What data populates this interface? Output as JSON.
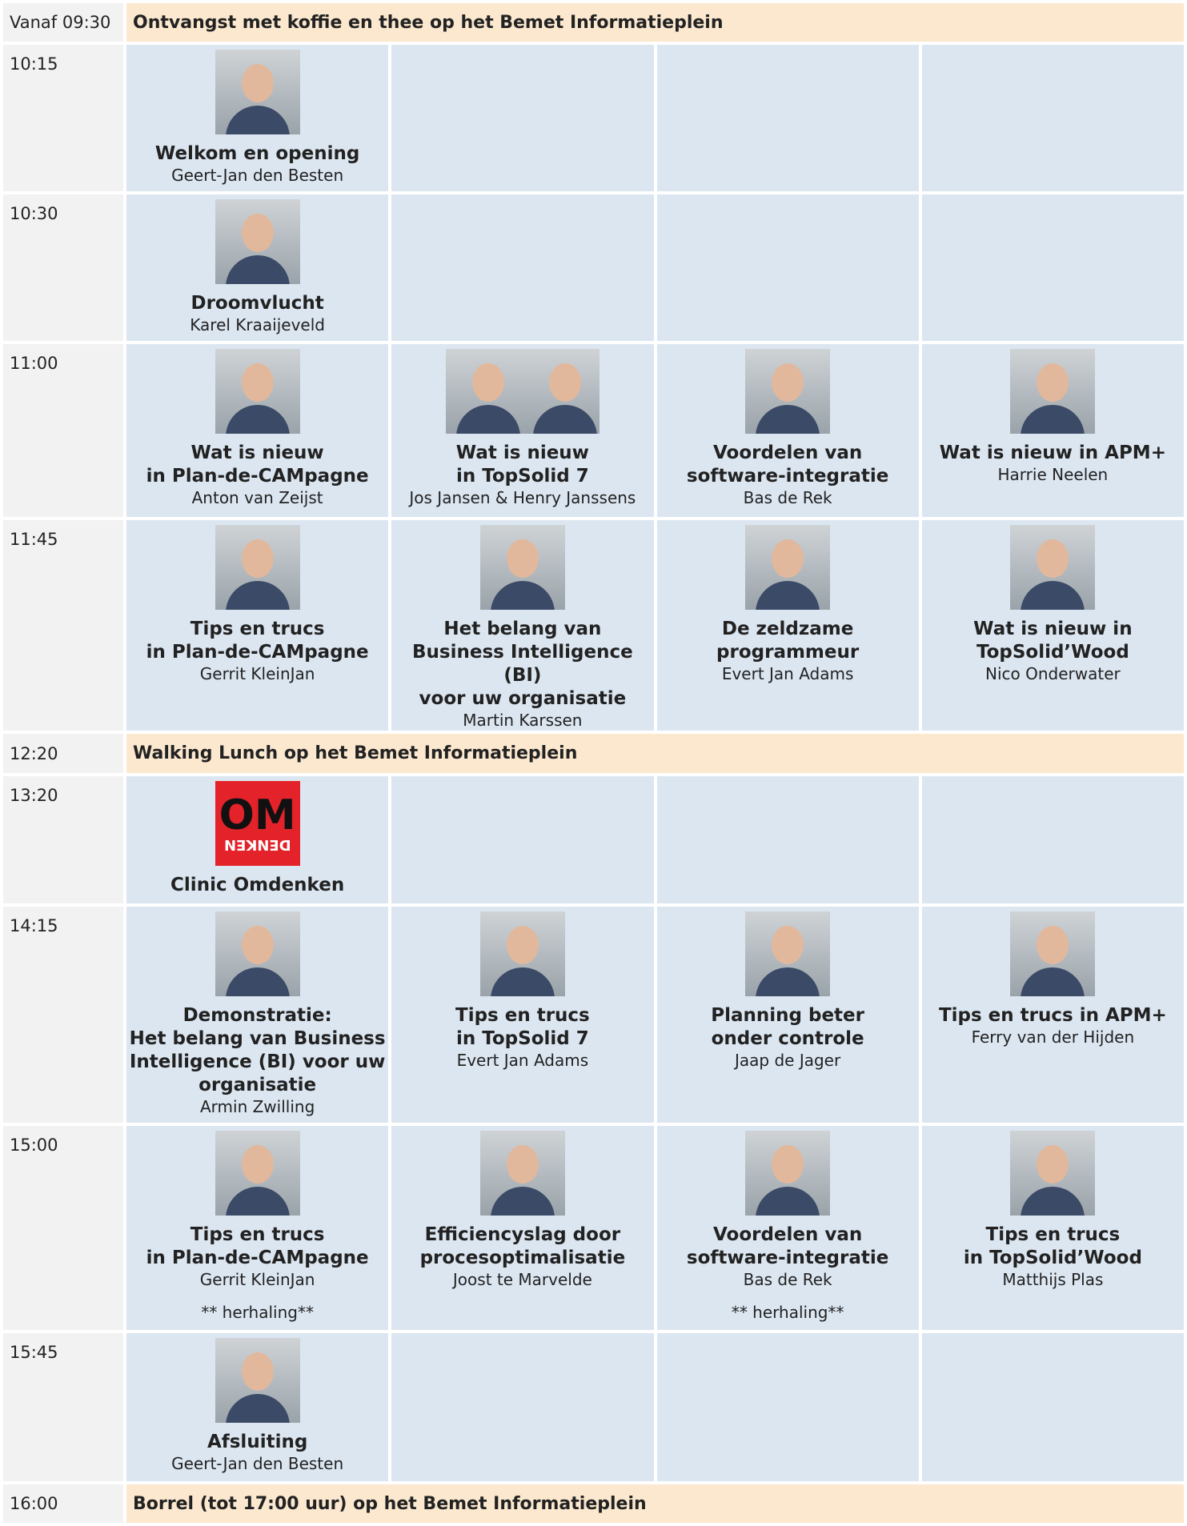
{
  "rows": [
    {
      "time": "Vanaf 09:30",
      "banner": "Ontvangst met koffie en thee op het Bemet Informatieplein"
    },
    {
      "time": "10:15",
      "sessions": [
        {
          "title_lines": [
            "Welkom en opening"
          ],
          "speaker": "Geert-Jan den Besten"
        }
      ]
    },
    {
      "time": "10:30",
      "sessions": [
        {
          "title_lines": [
            "Droomvlucht"
          ],
          "speaker": "Karel Kraaijeveld"
        }
      ]
    },
    {
      "time": "11:00",
      "sessions": [
        {
          "title_lines": [
            "Wat is nieuw",
            "in Plan-de-CAMpagne"
          ],
          "speaker": "Anton van Zeijst"
        },
        {
          "title_lines": [
            "Wat is nieuw",
            "in TopSolid 7"
          ],
          "speaker": "Jos Jansen & Henry Janssens"
        },
        {
          "title_lines": [
            "Voordelen van",
            "software-integratie"
          ],
          "speaker": "Bas de Rek"
        },
        {
          "title_lines": [
            "Wat is nieuw in APM+"
          ],
          "speaker": "Harrie Neelen"
        }
      ]
    },
    {
      "time": "11:45",
      "sessions": [
        {
          "title_lines": [
            "Tips en trucs",
            "in Plan-de-CAMpagne"
          ],
          "speaker": "Gerrit KleinJan"
        },
        {
          "title_lines": [
            "Het belang van",
            "Business Intelligence (BI)",
            "voor uw organisatie"
          ],
          "speaker": "Martin Karssen"
        },
        {
          "title_lines": [
            "De zeldzame",
            "programmeur"
          ],
          "speaker": "Evert Jan Adams"
        },
        {
          "title_lines": [
            "Wat is nieuw in",
            "TopSolid’Wood"
          ],
          "speaker": "Nico Onderwater"
        }
      ]
    },
    {
      "time": "12:20",
      "banner": "Walking Lunch op het Bemet Informatieplein"
    },
    {
      "time": "13:20",
      "sessions": [
        {
          "logo": [
            "OM",
            "DENKEN"
          ],
          "title_lines": [
            "Clinic Omdenken"
          ]
        }
      ]
    },
    {
      "time": "14:15",
      "sessions": [
        {
          "title_lines": [
            "Demonstratie:",
            "Het belang van Business",
            "Intelligence (BI) voor uw",
            "organisatie"
          ],
          "speaker": "Armin Zwilling"
        },
        {
          "title_lines": [
            "Tips en trucs",
            "in TopSolid 7"
          ],
          "speaker": "Evert Jan Adams"
        },
        {
          "title_lines": [
            "Planning beter",
            "onder controle"
          ],
          "speaker": "Jaap de Jager"
        },
        {
          "title_lines": [
            "Tips en trucs in APM+"
          ],
          "speaker": "Ferry van der Hijden"
        }
      ]
    },
    {
      "time": "15:00",
      "sessions": [
        {
          "title_lines": [
            "Tips en trucs",
            "in Plan-de-CAMpagne"
          ],
          "speaker": "Gerrit KleinJan",
          "note": "** herhaling**"
        },
        {
          "title_lines": [
            "Efficiencyslag door",
            "procesoptimalisatie"
          ],
          "speaker": "Joost te Marvelde"
        },
        {
          "title_lines": [
            "Voordelen van",
            "software-integratie"
          ],
          "speaker": "Bas de Rek",
          "note": "** herhaling**"
        },
        {
          "title_lines": [
            "Tips en trucs",
            "in TopSolid’Wood"
          ],
          "speaker": "Matthijs Plas"
        }
      ]
    },
    {
      "time": "15:45",
      "sessions": [
        {
          "title_lines": [
            "Afsluiting"
          ],
          "speaker": "Geert-Jan den Besten"
        }
      ]
    },
    {
      "time": "16:00",
      "banner": "Borrel (tot 17:00 uur) op het Bemet Informatieplein"
    }
  ]
}
